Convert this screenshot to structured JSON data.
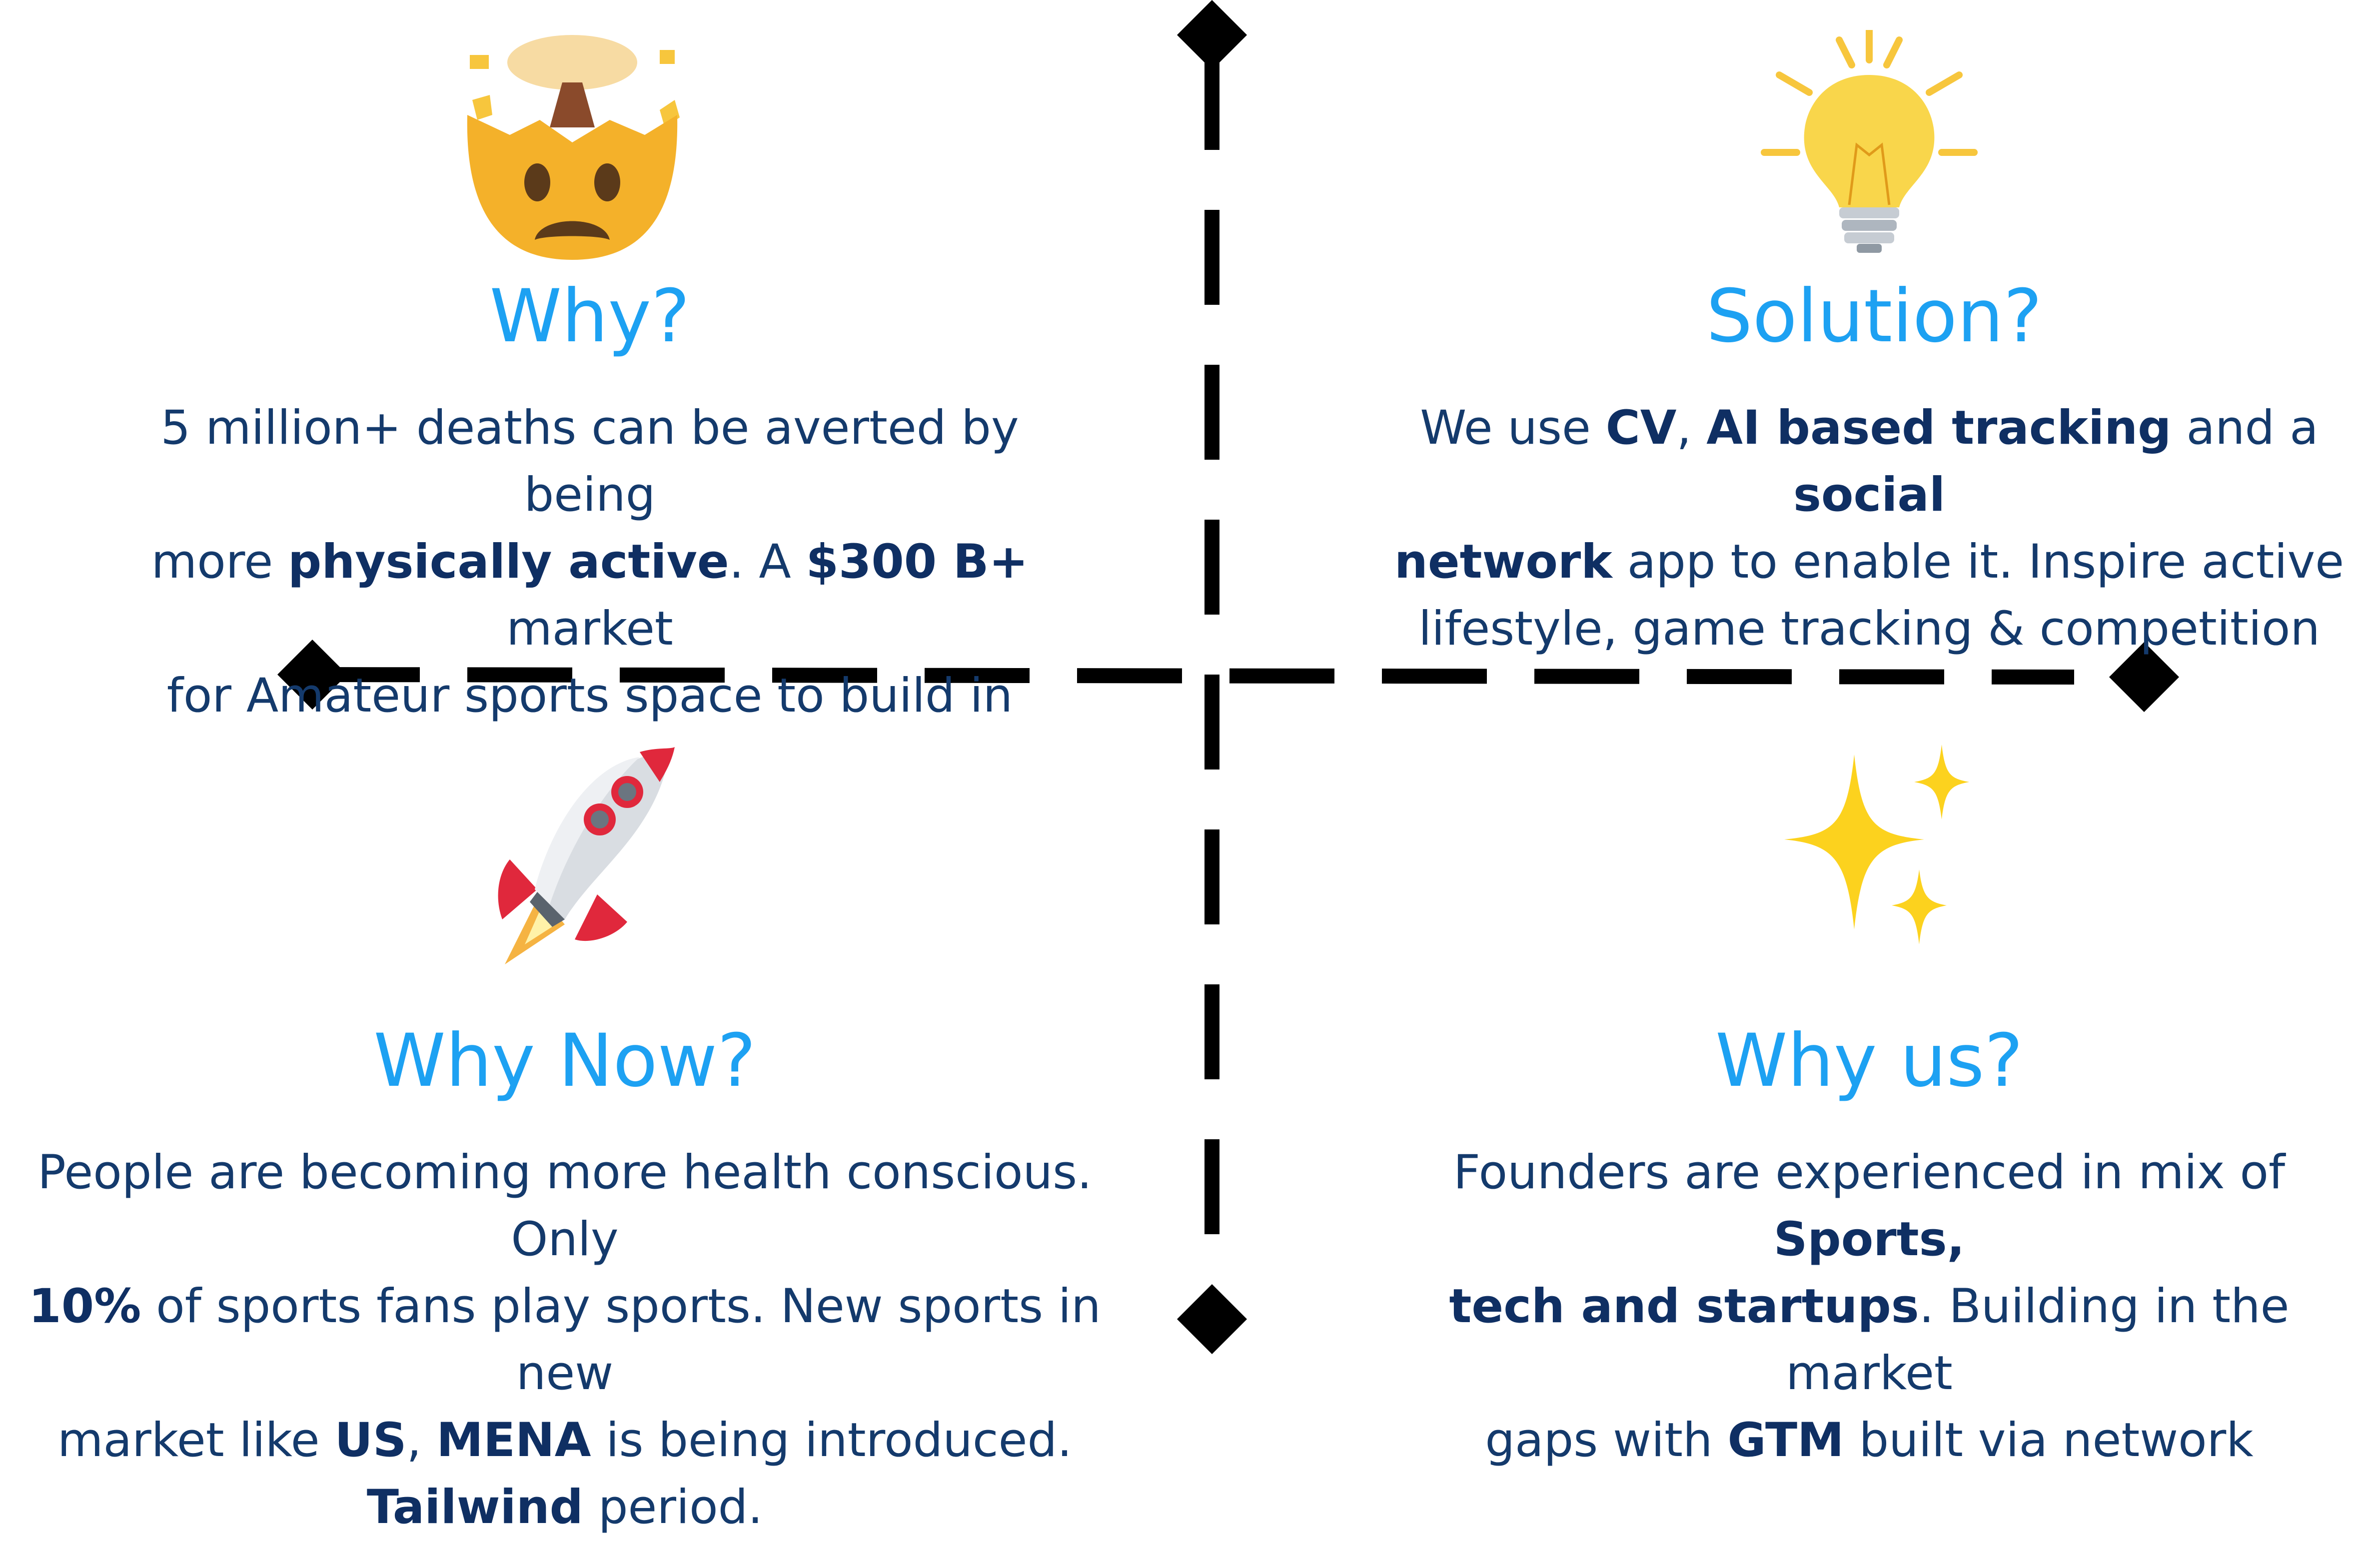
{
  "quadrants": {
    "why": {
      "title": "Why?",
      "icon": "exploding-head-icon",
      "text": [
        {
          "t": "5 million+ deaths can be averted by being",
          "b": false
        },
        {
          "br": true
        },
        {
          "t": "more ",
          "b": false
        },
        {
          "t": "physically active",
          "b": true
        },
        {
          "t": ". A ",
          "b": false
        },
        {
          "t": "$300 B+",
          "b": true
        },
        {
          "t": " market",
          "b": false
        },
        {
          "br": true
        },
        {
          "t": "for Amateur sports space to build in",
          "b": false
        }
      ]
    },
    "solution": {
      "title": "Solution?",
      "icon": "light-bulb-icon",
      "text": [
        {
          "t": "We use ",
          "b": false
        },
        {
          "t": "CV",
          "b": true
        },
        {
          "t": ", ",
          "b": false
        },
        {
          "t": "AI based tracking",
          "b": true
        },
        {
          "t": " and a ",
          "b": false
        },
        {
          "t": "social",
          "b": true
        },
        {
          "br": true
        },
        {
          "t": "network",
          "b": true
        },
        {
          "t": " app to enable it. Inspire active",
          "b": false
        },
        {
          "br": true
        },
        {
          "t": "lifestyle, game tracking & competition",
          "b": false
        }
      ]
    },
    "why_now": {
      "title": "Why Now?",
      "icon": "rocket-icon",
      "text": [
        {
          "t": "People are becoming more health conscious. Only",
          "b": false
        },
        {
          "br": true
        },
        {
          "t": "10%",
          "b": true
        },
        {
          "t": " of sports fans play sports. New sports in new",
          "b": false
        },
        {
          "br": true
        },
        {
          "t": "market like ",
          "b": false
        },
        {
          "t": "US",
          "b": true
        },
        {
          "t": ", ",
          "b": false
        },
        {
          "t": "MENA",
          "b": true
        },
        {
          "t": " is being introduced.",
          "b": false
        },
        {
          "br": true
        },
        {
          "t": "Tailwind",
          "b": true
        },
        {
          "t": " period.",
          "b": false
        }
      ]
    },
    "why_us": {
      "title": "Why us?",
      "icon": "sparkles-icon",
      "text": [
        {
          "t": "Founders are experienced in mix of ",
          "b": false
        },
        {
          "t": "Sports,",
          "b": true
        },
        {
          "br": true
        },
        {
          "t": "tech and startups",
          "b": true
        },
        {
          "t": ". Building in the market",
          "b": false
        },
        {
          "br": true
        },
        {
          "t": "gaps with ",
          "b": false
        },
        {
          "t": "GTM",
          "b": true
        },
        {
          "t": " built via network",
          "b": false
        }
      ]
    }
  },
  "colors": {
    "heading": "#1da1f2",
    "body": "#143a6c",
    "axis": "#000000"
  }
}
